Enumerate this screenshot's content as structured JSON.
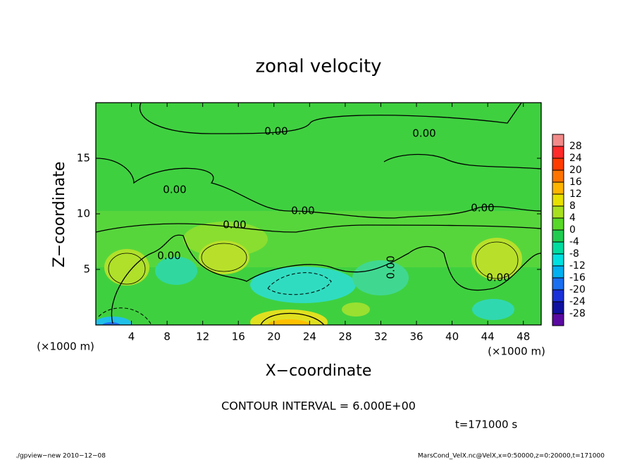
{
  "chart_data": {
    "type": "contour",
    "title": "zonal velocity",
    "xlabel": "X−coordinate",
    "ylabel": "Z−coordinate",
    "x_unit_label": "(×1000 m)",
    "xlim": [
      0,
      50
    ],
    "xticks": [
      4,
      8,
      12,
      16,
      20,
      24,
      28,
      32,
      36,
      40,
      44,
      48
    ],
    "ylim": [
      0,
      20
    ],
    "yticks": [
      5,
      10,
      15
    ],
    "contour_label": "0.00",
    "colorbar_ticks": [
      28,
      24,
      20,
      16,
      12,
      8,
      4,
      0,
      -4,
      -8,
      -12,
      -16,
      -20,
      -24,
      -28
    ],
    "colorbar_colors": [
      "#f28a8a",
      "#ff2a2a",
      "#ff3c00",
      "#ff7400",
      "#ffb400",
      "#e8e000",
      "#a8e020",
      "#58d828",
      "#20cc50",
      "#00dca0",
      "#00e0e0",
      "#00b0f0",
      "#1a6ef0",
      "#1a30d8",
      "#1010a0",
      "#5a0aa0"
    ],
    "contour_interval": "CONTOUR INTERVAL = 6.000E+00",
    "time_label": "t=171000 s",
    "footer_left": "./gpview−new   2010−12−08",
    "footer_right": "MarsCond_VelX.nc@VelX,x=0:50000,z=0:20000,t=171000"
  }
}
